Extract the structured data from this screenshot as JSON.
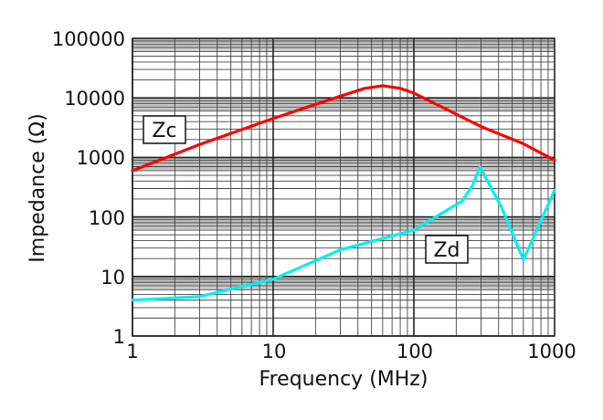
{
  "chart_data": {
    "type": "line",
    "xlabel": "Frequency (MHz)",
    "ylabel": "Impedance (Ω)",
    "xscale": "log",
    "yscale": "log",
    "xlim": [
      1,
      1000
    ],
    "ylim": [
      1,
      100000
    ],
    "grid": true,
    "x_ticks": [
      "1",
      "10",
      "100",
      "1000"
    ],
    "y_ticks": [
      "1",
      "10",
      "100",
      "1000",
      "10000",
      "100000"
    ],
    "series": [
      {
        "name": "Zc",
        "color": "#ff0000",
        "x": [
          1,
          3,
          10,
          30,
          45,
          60,
          80,
          100,
          300,
          600,
          1000
        ],
        "y": [
          600,
          1650,
          4500,
          10700,
          14500,
          16000,
          14500,
          12000,
          3300,
          1700,
          900
        ]
      },
      {
        "name": "Zd",
        "color": "#00f0f0",
        "x": [
          1,
          3,
          10,
          30,
          100,
          220,
          260,
          295,
          420,
          600,
          1000
        ],
        "y": [
          4,
          4.6,
          9,
          28,
          60,
          185,
          330,
          690,
          145,
          19,
          280
        ]
      }
    ]
  }
}
